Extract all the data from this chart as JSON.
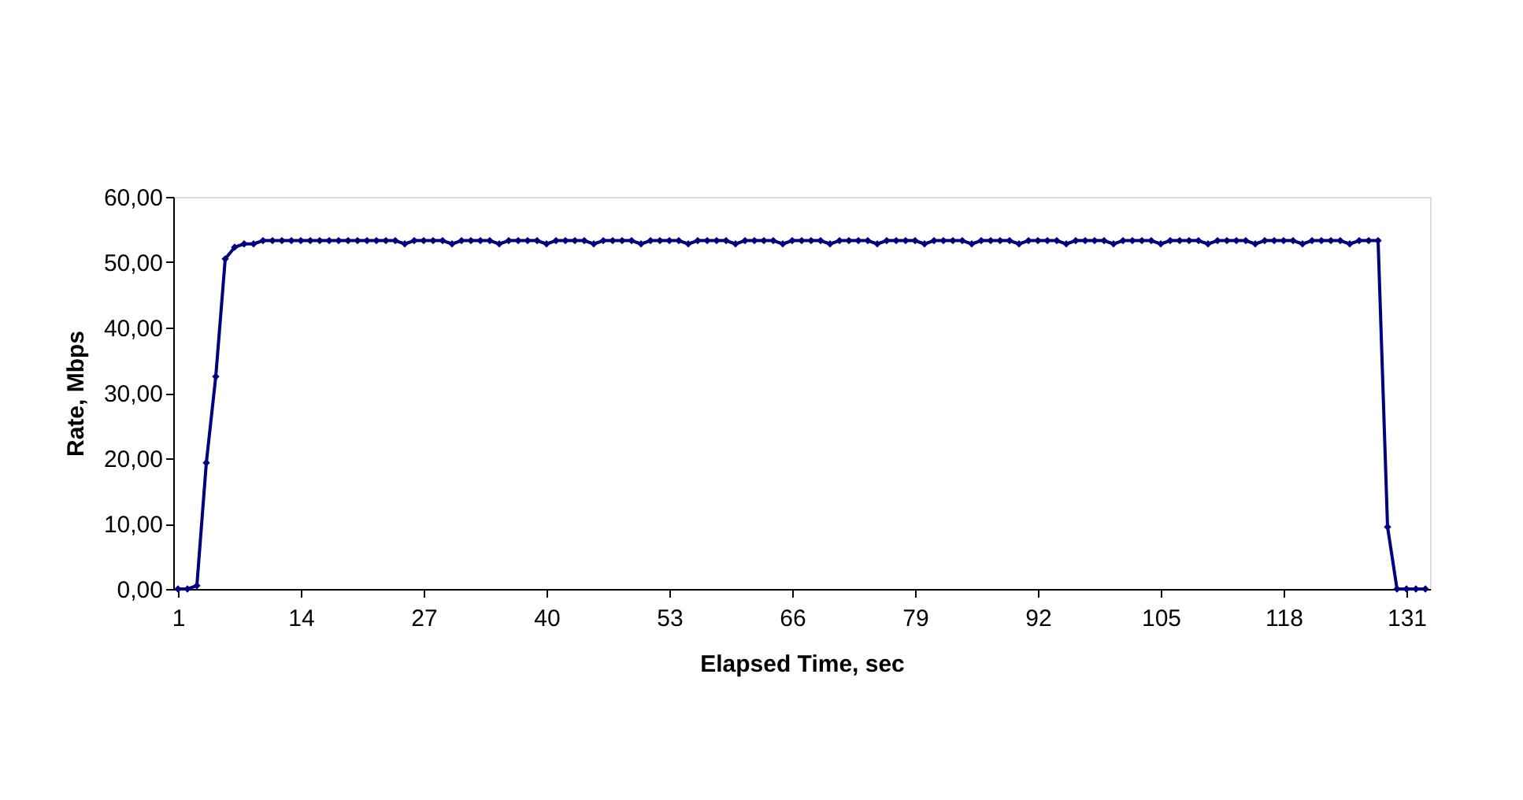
{
  "chart_data": {
    "type": "line",
    "xlabel": "Elapsed Time, sec",
    "ylabel": "Rate, Mbps",
    "categories": [
      "1",
      null,
      null,
      null,
      null,
      null,
      null,
      null,
      null,
      null,
      null,
      null,
      null,
      "14",
      null,
      null,
      null,
      null,
      null,
      null,
      null,
      null,
      null,
      null,
      null,
      null,
      "27",
      null,
      null,
      null,
      null,
      null,
      null,
      null,
      null,
      null,
      null,
      null,
      null,
      "40",
      null,
      null,
      null,
      null,
      null,
      null,
      null,
      null,
      null,
      null,
      null,
      null,
      "53",
      null,
      null,
      null,
      null,
      null,
      null,
      null,
      null,
      null,
      null,
      null,
      null,
      "66",
      null,
      null,
      null,
      null,
      null,
      null,
      null,
      null,
      null,
      null,
      null,
      null,
      "79",
      null,
      null,
      null,
      null,
      null,
      null,
      null,
      null,
      null,
      null,
      null,
      null,
      "92",
      null,
      null,
      null,
      null,
      null,
      null,
      null,
      null,
      null,
      null,
      null,
      null,
      "105",
      null,
      null,
      null,
      null,
      null,
      null,
      null,
      null,
      null,
      null,
      null,
      null,
      "118",
      null,
      null,
      null,
      null,
      null,
      null,
      null,
      null,
      null,
      null,
      null,
      null,
      "131",
      null,
      null
    ],
    "series": [
      {
        "color": "#000080",
        "values": [
          0,
          0,
          0.5,
          19.3,
          32.5,
          50.5,
          52.3,
          52.8,
          52.8,
          53.3,
          53.3,
          53.3,
          53.3,
          53.3,
          53.3,
          53.3,
          53.3,
          53.3,
          53.3,
          53.3,
          53.3,
          53.3,
          53.3,
          53.3,
          52.8,
          53.3,
          53.3,
          53.3,
          53.3,
          52.8,
          53.3,
          53.3,
          53.3,
          53.3,
          52.8,
          53.3,
          53.3,
          53.3,
          53.3,
          52.8,
          53.3,
          53.3,
          53.3,
          53.3,
          52.8,
          53.3,
          53.3,
          53.3,
          53.3,
          52.8,
          53.3,
          53.3,
          53.3,
          53.3,
          52.8,
          53.3,
          53.3,
          53.3,
          53.3,
          52.8,
          53.3,
          53.3,
          53.3,
          53.3,
          52.8,
          53.3,
          53.3,
          53.3,
          53.3,
          52.8,
          53.3,
          53.3,
          53.3,
          53.3,
          52.8,
          53.3,
          53.3,
          53.3,
          53.3,
          52.8,
          53.3,
          53.3,
          53.3,
          53.3,
          52.8,
          53.3,
          53.3,
          53.3,
          53.3,
          52.8,
          53.3,
          53.3,
          53.3,
          53.3,
          52.8,
          53.3,
          53.3,
          53.3,
          53.3,
          52.8,
          53.3,
          53.3,
          53.3,
          53.3,
          52.8,
          53.3,
          53.3,
          53.3,
          53.3,
          52.8,
          53.3,
          53.3,
          53.3,
          53.3,
          52.8,
          53.3,
          53.3,
          53.3,
          53.3,
          52.8,
          53.3,
          53.3,
          53.3,
          53.3,
          52.8,
          53.3,
          53.3,
          53.3,
          9.5,
          0,
          0,
          0,
          0
        ]
      }
    ],
    "ylim": [
      0,
      60
    ],
    "yticks": [
      {
        "value": 0,
        "label": "0,00"
      },
      {
        "value": 10,
        "label": "10,00"
      },
      {
        "value": 20,
        "label": "20,00"
      },
      {
        "value": 30,
        "label": "30,00"
      },
      {
        "value": 40,
        "label": "40,00"
      },
      {
        "value": 50,
        "label": "50,00"
      },
      {
        "value": 60,
        "label": "60,00"
      }
    ],
    "marker": "diamond",
    "line_style": "solid",
    "grid": false,
    "legend": false
  }
}
